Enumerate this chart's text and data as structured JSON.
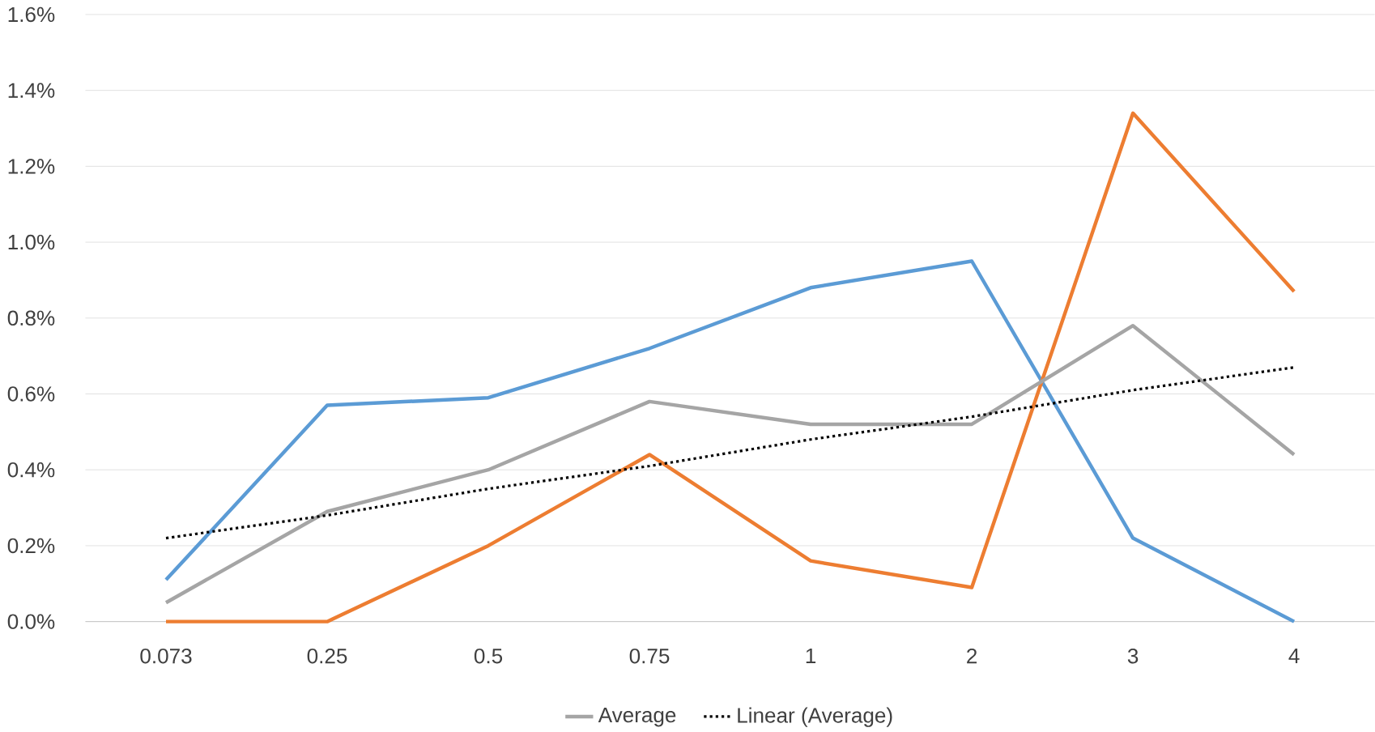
{
  "chart_data": {
    "type": "line",
    "categories": [
      "0.073",
      "0.25",
      "0.5",
      "0.75",
      "1",
      "2",
      "3",
      "4"
    ],
    "series": [
      {
        "color": "#5b9bd5",
        "values": [
          0.11,
          0.57,
          0.59,
          0.72,
          0.88,
          0.95,
          0.22,
          0
        ]
      },
      {
        "color": "#ed7d31",
        "values": [
          0,
          0,
          0.2,
          0.44,
          0.16,
          0.09,
          1.34,
          0.87
        ]
      },
      {
        "name": "Average",
        "color": "#a5a5a5",
        "values": [
          0.05,
          0.29,
          0.4,
          0.58,
          0.52,
          0.52,
          0.78,
          0.44
        ]
      },
      {
        "name": "Linear (Average)",
        "color": "#000000",
        "line_style": "dotted",
        "values": [
          0.22,
          0.28,
          0.35,
          0.41,
          0.48,
          0.54,
          0.61,
          0.67
        ]
      }
    ],
    "ylim": [
      0,
      1.6
    ],
    "yticks": [
      {
        "value": 0,
        "label": "0.0%"
      },
      {
        "value": 0.2,
        "label": "0.2%"
      },
      {
        "value": 0.4,
        "label": "0.4%"
      },
      {
        "value": 0.6,
        "label": "0.6%"
      },
      {
        "value": 0.8,
        "label": "0.8%"
      },
      {
        "value": 1.0,
        "label": "1.0%"
      },
      {
        "value": 1.2,
        "label": "1.2%"
      },
      {
        "value": 1.4,
        "label": "1.4%"
      },
      {
        "value": 1.6,
        "label": "1.6%"
      }
    ],
    "grid": "y",
    "legend": "bottom",
    "marker": "none"
  }
}
